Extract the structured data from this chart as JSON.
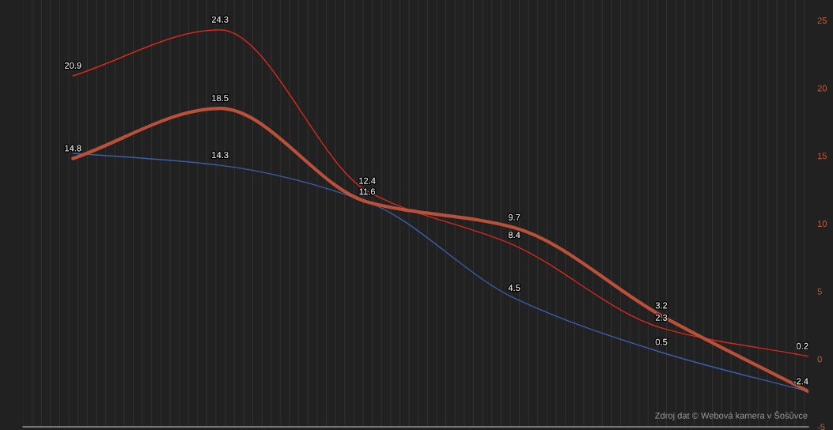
{
  "chart_data": {
    "type": "line",
    "categories": [
      null,
      null,
      null,
      null,
      null,
      null
    ],
    "series": [
      {
        "name": null,
        "color": "#d42a1c",
        "values": [
          20.9,
          24.3,
          12.4,
          8.4,
          2.3,
          0.2
        ],
        "value_labels": [
          "20.9",
          "24.3",
          "12.4",
          "8.4",
          "2.3",
          "0.2"
        ]
      },
      {
        "name": null,
        "color": "#3a5fa8",
        "values": [
          15.2,
          14.3,
          11.6,
          4.5,
          0.5,
          -2.4
        ],
        "value_labels": [
          null,
          "14.3",
          null,
          "4.5",
          "0.5",
          null
        ]
      },
      {
        "name": null,
        "color": "#b9503a",
        "values": [
          14.8,
          18.5,
          11.6,
          9.7,
          3.2,
          -2.4
        ],
        "value_labels": [
          "14.8",
          "18.5",
          "11.6",
          "9.7",
          "3.2",
          "-2.4"
        ]
      }
    ],
    "ylim": [
      -5,
      26.5
    ],
    "yticks": [
      -5,
      0,
      5,
      10,
      15,
      20,
      25
    ],
    "grid": "x",
    "legend": false,
    "marker": "none",
    "line_style": "solid",
    "annotations": [
      "Zdroj dat © Webová kamera v Šošůvce"
    ]
  }
}
